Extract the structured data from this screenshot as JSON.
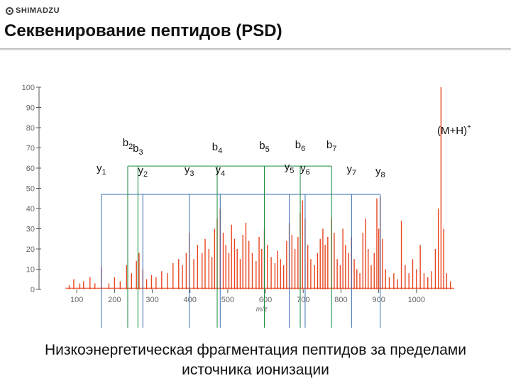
{
  "header": {
    "logo_text": "SHIMADZU",
    "title": "Секвенирование пептидов (PSD)"
  },
  "caption": {
    "line1": "Низкоэнергетическая фрагментация пептидов за пределами",
    "line2": "источника ионизации"
  },
  "chart_data": {
    "type": "line",
    "title": "",
    "xlabel": "m/z",
    "ylabel": "",
    "xlim": [
      0,
      1100
    ],
    "ylim": [
      0,
      100
    ],
    "xticks": [
      100,
      200,
      300,
      400,
      500,
      600,
      700,
      800,
      900,
      1000
    ],
    "yticks": [
      0,
      10,
      20,
      30,
      40,
      50,
      60,
      70,
      80,
      90,
      100
    ],
    "grid": false,
    "line_color": "#e8451f",
    "annotation_color": "#1a8a3a",
    "precursor": {
      "label": "(M+H)",
      "superscript": "+",
      "x": 1065,
      "y": 100
    },
    "b_ions": [
      {
        "base": "b",
        "sub": "2",
        "x": 235
      },
      {
        "base": "b",
        "sub": "3",
        "x": 262
      },
      {
        "base": "b",
        "sub": "4",
        "x": 472
      },
      {
        "base": "b",
        "sub": "5",
        "x": 597
      },
      {
        "base": "b",
        "sub": "6",
        "x": 692
      },
      {
        "base": "b",
        "sub": "7",
        "x": 775
      }
    ],
    "y_ions": [
      {
        "base": "y",
        "sub": "1",
        "x": 165
      },
      {
        "base": "y",
        "sub": "2",
        "x": 275
      },
      {
        "base": "y",
        "sub": "3",
        "x": 398
      },
      {
        "base": "y",
        "sub": "4",
        "x": 480
      },
      {
        "base": "y",
        "sub": "5",
        "x": 663
      },
      {
        "base": "y",
        "sub": "6",
        "x": 705
      },
      {
        "base": "y",
        "sub": "7",
        "x": 828
      },
      {
        "base": "y",
        "sub": "8",
        "x": 904
      }
    ],
    "b_ladder_y": 61,
    "y_ladder_y": 47,
    "peaks": [
      {
        "x": 80,
        "y": 2
      },
      {
        "x": 92,
        "y": 5
      },
      {
        "x": 108,
        "y": 3
      },
      {
        "x": 118,
        "y": 4
      },
      {
        "x": 135,
        "y": 6
      },
      {
        "x": 148,
        "y": 3
      },
      {
        "x": 165,
        "y": 11
      },
      {
        "x": 185,
        "y": 3
      },
      {
        "x": 200,
        "y": 6
      },
      {
        "x": 215,
        "y": 4
      },
      {
        "x": 232,
        "y": 12
      },
      {
        "x": 245,
        "y": 8
      },
      {
        "x": 258,
        "y": 14
      },
      {
        "x": 265,
        "y": 18
      },
      {
        "x": 275,
        "y": 10
      },
      {
        "x": 285,
        "y": 5
      },
      {
        "x": 298,
        "y": 7
      },
      {
        "x": 310,
        "y": 6
      },
      {
        "x": 325,
        "y": 9
      },
      {
        "x": 340,
        "y": 8
      },
      {
        "x": 355,
        "y": 13
      },
      {
        "x": 370,
        "y": 15
      },
      {
        "x": 380,
        "y": 12
      },
      {
        "x": 390,
        "y": 18
      },
      {
        "x": 398,
        "y": 28
      },
      {
        "x": 410,
        "y": 15
      },
      {
        "x": 420,
        "y": 22
      },
      {
        "x": 432,
        "y": 18
      },
      {
        "x": 440,
        "y": 25
      },
      {
        "x": 450,
        "y": 20
      },
      {
        "x": 458,
        "y": 16
      },
      {
        "x": 465,
        "y": 30
      },
      {
        "x": 472,
        "y": 35
      },
      {
        "x": 480,
        "y": 40
      },
      {
        "x": 488,
        "y": 28
      },
      {
        "x": 495,
        "y": 22
      },
      {
        "x": 503,
        "y": 18
      },
      {
        "x": 510,
        "y": 32
      },
      {
        "x": 518,
        "y": 25
      },
      {
        "x": 525,
        "y": 20
      },
      {
        "x": 533,
        "y": 15
      },
      {
        "x": 540,
        "y": 27
      },
      {
        "x": 548,
        "y": 33
      },
      {
        "x": 556,
        "y": 24
      },
      {
        "x": 565,
        "y": 18
      },
      {
        "x": 575,
        "y": 14
      },
      {
        "x": 583,
        "y": 26
      },
      {
        "x": 590,
        "y": 20
      },
      {
        "x": 597,
        "y": 30
      },
      {
        "x": 605,
        "y": 22
      },
      {
        "x": 615,
        "y": 16
      },
      {
        "x": 625,
        "y": 13
      },
      {
        "x": 632,
        "y": 19
      },
      {
        "x": 640,
        "y": 15
      },
      {
        "x": 648,
        "y": 12
      },
      {
        "x": 656,
        "y": 24
      },
      {
        "x": 663,
        "y": 33
      },
      {
        "x": 670,
        "y": 27
      },
      {
        "x": 678,
        "y": 20
      },
      {
        "x": 686,
        "y": 26
      },
      {
        "x": 692,
        "y": 38
      },
      {
        "x": 698,
        "y": 44
      },
      {
        "x": 705,
        "y": 35
      },
      {
        "x": 712,
        "y": 22
      },
      {
        "x": 720,
        "y": 15
      },
      {
        "x": 730,
        "y": 12
      },
      {
        "x": 738,
        "y": 18
      },
      {
        "x": 745,
        "y": 25
      },
      {
        "x": 752,
        "y": 30
      },
      {
        "x": 758,
        "y": 22
      },
      {
        "x": 765,
        "y": 26
      },
      {
        "x": 775,
        "y": 35
      },
      {
        "x": 782,
        "y": 28
      },
      {
        "x": 790,
        "y": 15
      },
      {
        "x": 798,
        "y": 12
      },
      {
        "x": 805,
        "y": 30
      },
      {
        "x": 812,
        "y": 22
      },
      {
        "x": 820,
        "y": 18
      },
      {
        "x": 828,
        "y": 26
      },
      {
        "x": 835,
        "y": 15
      },
      {
        "x": 842,
        "y": 10
      },
      {
        "x": 850,
        "y": 8
      },
      {
        "x": 858,
        "y": 28
      },
      {
        "x": 865,
        "y": 35
      },
      {
        "x": 872,
        "y": 20
      },
      {
        "x": 880,
        "y": 12
      },
      {
        "x": 888,
        "y": 18
      },
      {
        "x": 895,
        "y": 45
      },
      {
        "x": 900,
        "y": 30
      },
      {
        "x": 904,
        "y": 46
      },
      {
        "x": 910,
        "y": 25
      },
      {
        "x": 918,
        "y": 10
      },
      {
        "x": 928,
        "y": 6
      },
      {
        "x": 940,
        "y": 8
      },
      {
        "x": 950,
        "y": 5
      },
      {
        "x": 960,
        "y": 34
      },
      {
        "x": 970,
        "y": 12
      },
      {
        "x": 980,
        "y": 8
      },
      {
        "x": 990,
        "y": 15
      },
      {
        "x": 1000,
        "y": 10
      },
      {
        "x": 1010,
        "y": 22
      },
      {
        "x": 1020,
        "y": 8
      },
      {
        "x": 1030,
        "y": 6
      },
      {
        "x": 1040,
        "y": 9
      },
      {
        "x": 1050,
        "y": 20
      },
      {
        "x": 1058,
        "y": 40
      },
      {
        "x": 1065,
        "y": 100
      },
      {
        "x": 1072,
        "y": 30
      },
      {
        "x": 1080,
        "y": 8
      },
      {
        "x": 1090,
        "y": 4
      }
    ]
  }
}
